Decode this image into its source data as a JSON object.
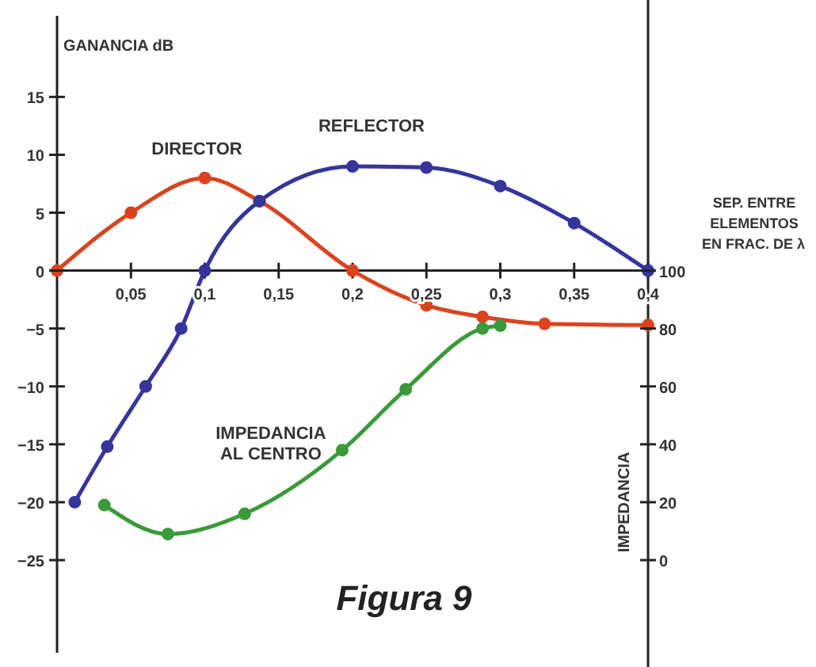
{
  "chart_data": {
    "type": "line",
    "title": "Figura 9",
    "xlabel": "SEP. ENTRE ELEMENTOS EN FRAC. DE λ",
    "ylabel": "GANANCIA dB",
    "y2label": "IMPEDANCIA",
    "xlim": [
      0,
      0.4
    ],
    "xticks": [
      {
        "value": 0.05,
        "label": "0,05"
      },
      {
        "value": 0.1,
        "label": "0,1"
      },
      {
        "value": 0.15,
        "label": "0,15"
      },
      {
        "value": 0.2,
        "label": "0,2"
      },
      {
        "value": 0.25,
        "label": "0,25"
      },
      {
        "value": 0.3,
        "label": "0,3"
      },
      {
        "value": 0.35,
        "label": "0,35"
      },
      {
        "value": 0.4,
        "label": "0,4"
      }
    ],
    "ylim": [
      -33,
      22
    ],
    "yticks": [
      15,
      10,
      5,
      0,
      {
        "value": -5,
        "label": "−5"
      },
      {
        "value": -10,
        "label": "−10"
      },
      {
        "value": -15,
        "label": "−15"
      },
      {
        "value": -20,
        "label": "−20"
      },
      {
        "value": -25,
        "label": "−25"
      }
    ],
    "y2lim": [
      -32,
      188
    ],
    "y2ticks": [
      0,
      20,
      40,
      60,
      80,
      100
    ],
    "grid": false,
    "marker": "circle",
    "line_style": "solid",
    "series": [
      {
        "name": "DIRECTOR",
        "color": "#d9441f",
        "x": [
          0,
          0.05,
          0.1,
          0.137,
          0.2,
          0.25,
          0.288,
          0.33,
          0.4
        ],
        "values": [
          0,
          5,
          8,
          6,
          0,
          -3,
          -4,
          -4.6,
          -4.7
        ]
      },
      {
        "name": "REFLECTOR",
        "color": "#35359a",
        "x": [
          0.012,
          0.034,
          0.06,
          0.084,
          0.1,
          0.137,
          0.2,
          0.25,
          0.3,
          0.35,
          0.4
        ],
        "values": [
          -20,
          -15.2,
          -10,
          -5,
          0,
          6,
          9,
          8.9,
          7.3,
          4.1,
          0
        ]
      },
      {
        "name": "IMPEDANCIA AL CENTRO",
        "color": "#3a9a3a",
        "axis": "y2",
        "x": [
          0.032,
          0.075,
          0.127,
          0.193,
          0.236,
          0.288,
          0.3
        ],
        "values": [
          19,
          9,
          16,
          38,
          59,
          80,
          81
        ]
      }
    ]
  }
}
